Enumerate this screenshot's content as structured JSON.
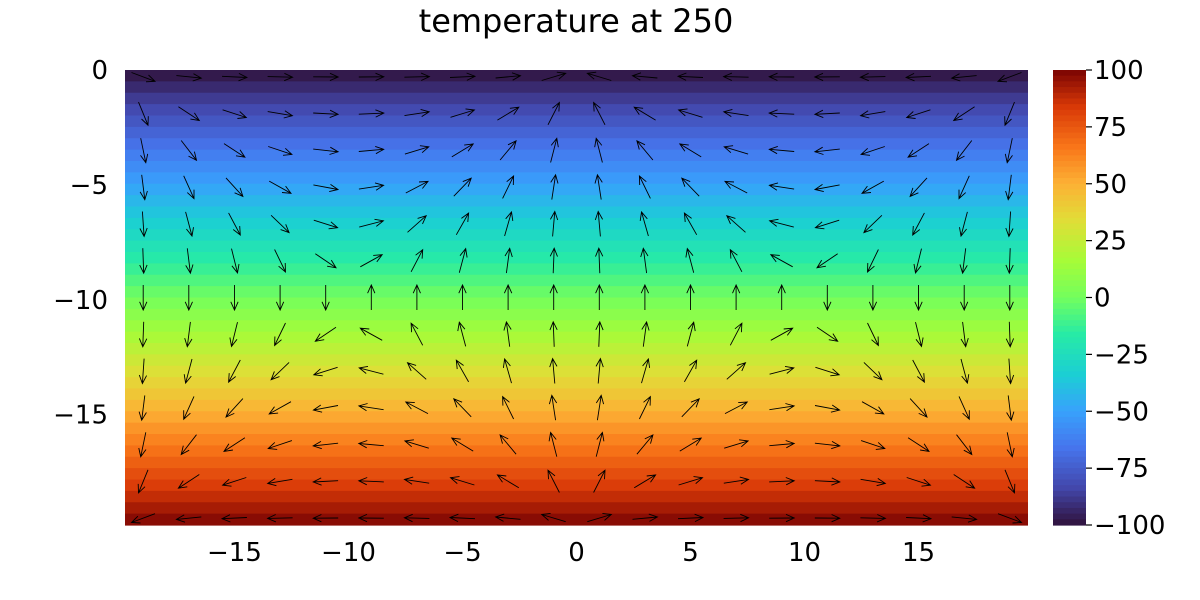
{
  "chart_data": {
    "type": "heatmap",
    "subtype": "filled-contour-with-quiver",
    "title": "temperature at 250",
    "xlabel": "",
    "ylabel": "",
    "xlim": [
      -19.8,
      19.8
    ],
    "ylim": [
      -19.8,
      0
    ],
    "xticks": [
      -15,
      -10,
      -5,
      0,
      5,
      10,
      15
    ],
    "xtick_labels": [
      "−15",
      "−10",
      "−5",
      "0",
      "5",
      "10",
      "15"
    ],
    "yticks": [
      0,
      -5,
      -10,
      -15
    ],
    "ytick_labels": [
      "0",
      "−5",
      "−10",
      "−15"
    ],
    "colorbar": {
      "range": [
        -100,
        100
      ],
      "ticks": [
        100,
        75,
        50,
        25,
        0,
        -25,
        -50,
        -75,
        -100
      ],
      "tick_labels": [
        "100",
        "75",
        "50",
        "25",
        "0",
        "−25",
        "−50",
        "−75",
        "−100"
      ],
      "colormap": "turbo"
    },
    "field": {
      "variable": "temperature",
      "depends_on": "y",
      "at_y_top": -100,
      "at_y_bottom": 100,
      "levels": 40
    },
    "quiver": {
      "pattern": "two counter-rotating convection cells, upflow at x=0, downflow at side walls",
      "x": [
        -19,
        -17,
        -15,
        -13,
        -11,
        -9,
        -7,
        -5,
        -3,
        -1,
        1,
        3,
        5,
        7,
        9,
        11,
        13,
        15,
        17,
        19
      ],
      "y": [
        -0.3,
        -1.9,
        -3.5,
        -5.1,
        -6.7,
        -8.3,
        -9.9,
        -11.5,
        -13.1,
        -14.7,
        -16.3,
        -17.9,
        -19.5
      ],
      "arrow_length": 0.8,
      "color": "#000000"
    },
    "legend": "none",
    "grid": false
  }
}
